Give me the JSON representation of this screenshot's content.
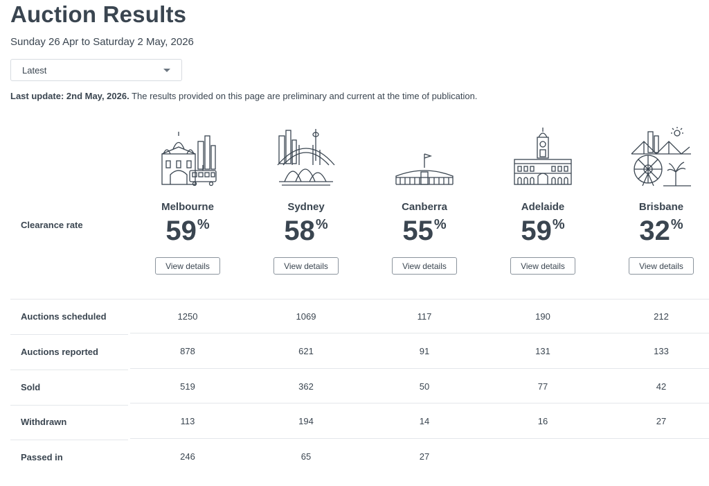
{
  "header": {
    "title": "Auction Results",
    "date_range": "Sunday 26 Apr to Saturday 2 May, 2026"
  },
  "filter": {
    "selected": "Latest"
  },
  "update_notice": {
    "bold": "Last update: 2nd May, 2026.",
    "text": " The results provided on this page are preliminary and current at the time of publication."
  },
  "clearance_label": "Clearance rate",
  "percent_symbol": "%",
  "view_details_label": "View details",
  "cities": [
    {
      "name": "Melbourne",
      "icon": "melbourne-skyline-icon",
      "clearance": "59"
    },
    {
      "name": "Sydney",
      "icon": "sydney-opera-house-icon",
      "clearance": "58"
    },
    {
      "name": "Canberra",
      "icon": "parliament-house-icon",
      "clearance": "55"
    },
    {
      "name": "Adelaide",
      "icon": "adelaide-town-hall-icon",
      "clearance": "59"
    },
    {
      "name": "Brisbane",
      "icon": "brisbane-story-bridge-icon",
      "clearance": "32"
    }
  ],
  "rows": [
    {
      "label": "Auctions scheduled",
      "values": [
        "1250",
        "1069",
        "117",
        "190",
        "212"
      ]
    },
    {
      "label": "Auctions reported",
      "values": [
        "878",
        "621",
        "91",
        "131",
        "133"
      ]
    },
    {
      "label": "Sold",
      "values": [
        "519",
        "362",
        "50",
        "77",
        "42"
      ]
    },
    {
      "label": "Withdrawn",
      "values": [
        "113",
        "194",
        "14",
        "16",
        "27"
      ]
    },
    {
      "label": "Passed in",
      "values": [
        "246",
        "65",
        "27",
        "",
        ""
      ]
    }
  ],
  "colors": {
    "text": "#3a4550",
    "border": "#d7dbe0",
    "divider": "#e4e7ea",
    "icon_stroke": "#3a4550"
  }
}
